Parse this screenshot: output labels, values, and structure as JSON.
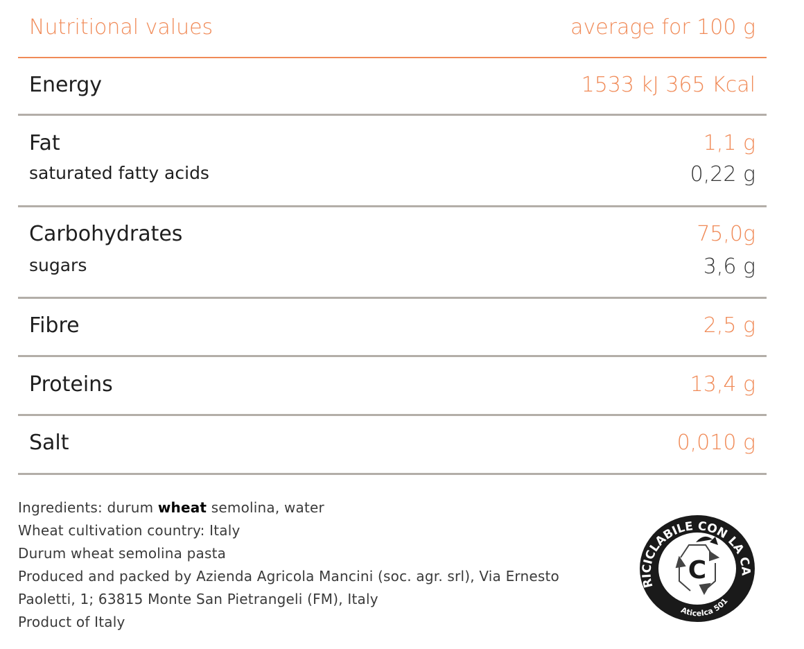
{
  "header": {
    "label": "Nutritional values",
    "value": "average for 100 g"
  },
  "rows": [
    {
      "label": "Energy",
      "value": "1533 kJ 365 Kcal"
    },
    {
      "label": "Fat",
      "value": "1,1 g",
      "sub_label": "saturated fatty acids",
      "sub_value": "0,22 g"
    },
    {
      "label": "Carbohydrates",
      "value": "75,0g",
      "sub_label": "sugars",
      "sub_value": "3,6 g"
    },
    {
      "label": "Fibre",
      "value": "2,5 g"
    },
    {
      "label": "Proteins",
      "value": "13,4 g"
    },
    {
      "label": "Salt",
      "value": "0,010 g"
    }
  ],
  "footer": {
    "ingredients_prefix": "Ingredients: durum ",
    "ingredients_allergen": "wheat",
    "ingredients_suffix": " semolina, water",
    "line2": "Wheat cultivation country: Italy",
    "line3": "Durum wheat semolina pasta",
    "line4": "Produced and packed by Azienda Agricola Mancini (soc. agr. srl), Via Ernesto",
    "line5": "Paoletti, 1; 63815 Monte San Pietrangeli (FM), Italy",
    "line6": "Product of Italy"
  },
  "recycling_seal": {
    "top_text": "RICICLABILE CON LA CARTA",
    "bottom_text": "Aticelca 501",
    "center_letter": "C"
  },
  "colors": {
    "accent": "#f08a57",
    "divider": "#b3aea8",
    "text": "#1f1f1f"
  }
}
